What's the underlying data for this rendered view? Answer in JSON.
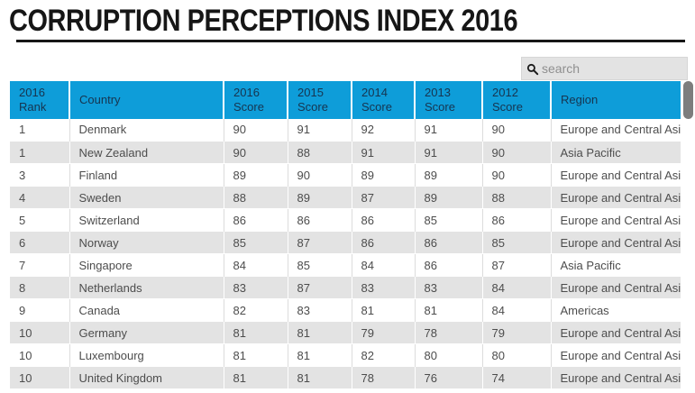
{
  "title": "CORRUPTION PERCEPTIONS INDEX 2016",
  "search": {
    "placeholder": "search",
    "icon": "search-icon"
  },
  "colors": {
    "header_bg": "#0e9dd9",
    "header_text": "#17344f",
    "row_alt_bg": "#e3e3e3",
    "title_underline": "#161616",
    "search_bg": "#e3e3e3",
    "scrollbar_thumb": "#7d7d7d"
  },
  "table": {
    "columns": [
      "2016 Rank",
      "Country",
      "2016 Score",
      "2015 Score",
      "2014 Score",
      "2013 Score",
      "2012 Score",
      "Region"
    ],
    "rows": [
      [
        "1",
        "Denmark",
        "90",
        "91",
        "92",
        "91",
        "90",
        "Europe and Central Asia"
      ],
      [
        "1",
        "New Zealand",
        "90",
        "88",
        "91",
        "91",
        "90",
        "Asia Pacific"
      ],
      [
        "3",
        "Finland",
        "89",
        "90",
        "89",
        "89",
        "90",
        "Europe and Central Asia"
      ],
      [
        "4",
        "Sweden",
        "88",
        "89",
        "87",
        "89",
        "88",
        "Europe and Central Asia"
      ],
      [
        "5",
        "Switzerland",
        "86",
        "86",
        "86",
        "85",
        "86",
        "Europe and Central Asia"
      ],
      [
        "6",
        "Norway",
        "85",
        "87",
        "86",
        "86",
        "85",
        "Europe and Central Asia"
      ],
      [
        "7",
        "Singapore",
        "84",
        "85",
        "84",
        "86",
        "87",
        "Asia Pacific"
      ],
      [
        "8",
        "Netherlands",
        "83",
        "87",
        "83",
        "83",
        "84",
        "Europe and Central Asia"
      ],
      [
        "9",
        "Canada",
        "82",
        "83",
        "81",
        "81",
        "84",
        "Americas"
      ],
      [
        "10",
        "Germany",
        "81",
        "81",
        "79",
        "78",
        "79",
        "Europe and Central Asia"
      ],
      [
        "10",
        "Luxembourg",
        "81",
        "81",
        "82",
        "80",
        "80",
        "Europe and Central Asia"
      ],
      [
        "10",
        "United Kingdom",
        "81",
        "81",
        "78",
        "76",
        "74",
        "Europe and Central Asia"
      ]
    ]
  }
}
